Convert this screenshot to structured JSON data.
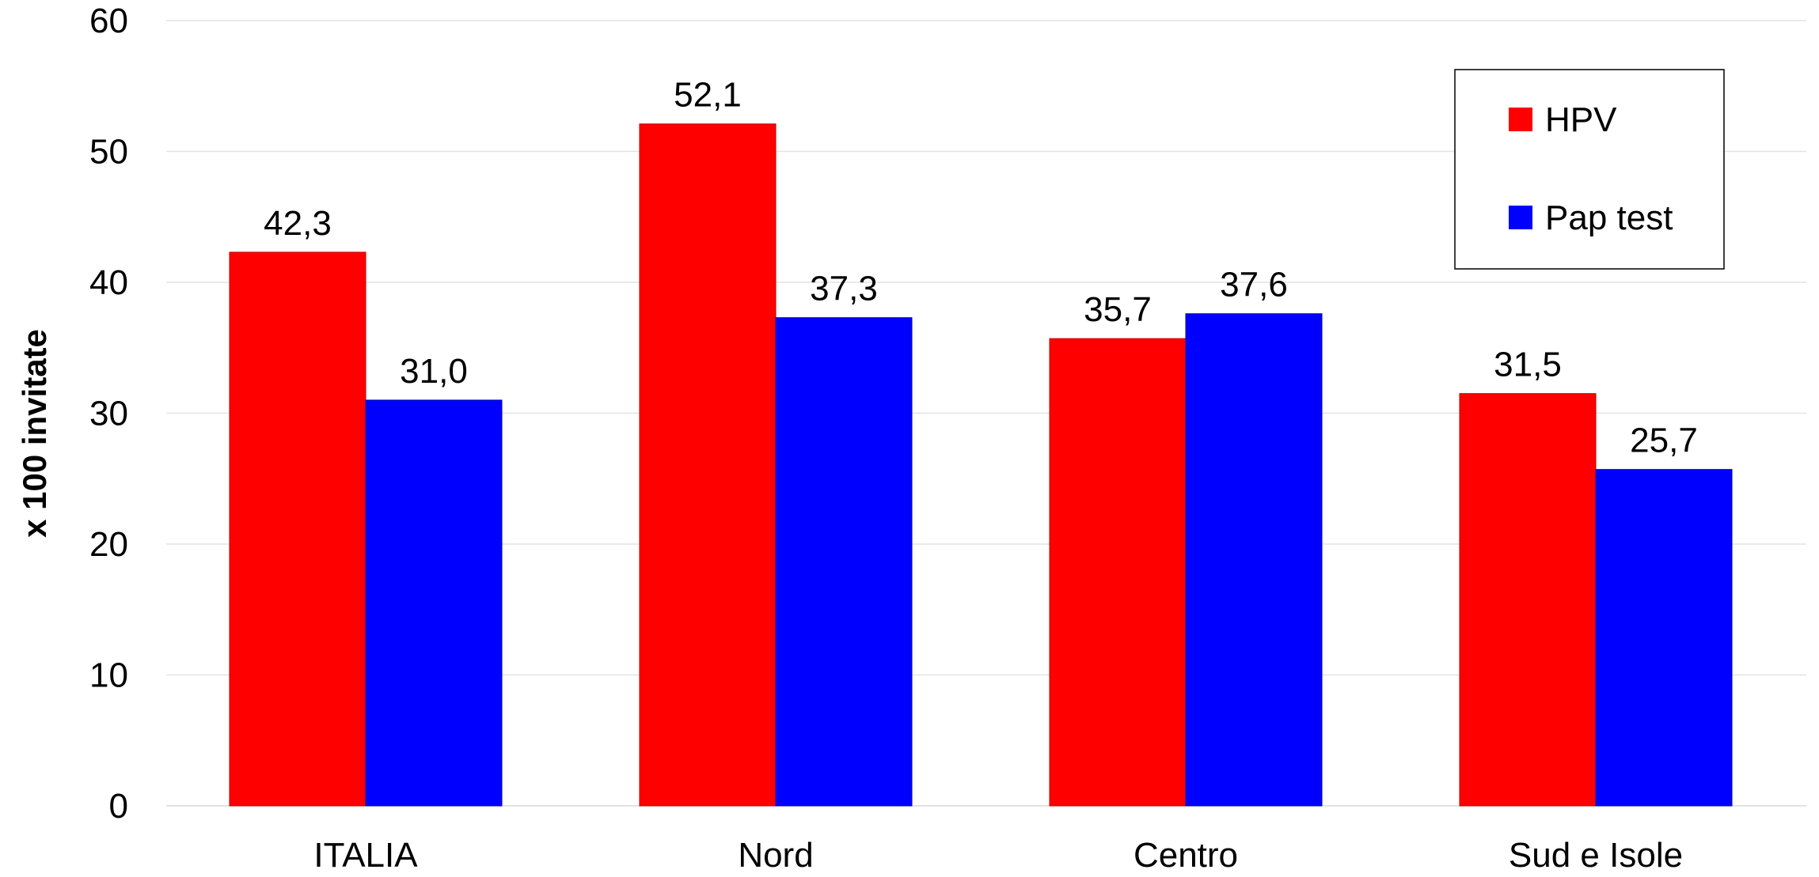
{
  "chart_data": {
    "type": "bar",
    "title": "",
    "xlabel": "",
    "ylabel": "x 100 invitate",
    "ylim": [
      0,
      60
    ],
    "yticks": [
      0,
      10,
      20,
      30,
      40,
      50,
      60
    ],
    "grid": true,
    "legend_position": "top-right",
    "categories": [
      "ITALIA",
      "Nord",
      "Centro",
      "Sud e Isole"
    ],
    "series": [
      {
        "name": "HPV",
        "color": "#ff0000",
        "values": [
          42.3,
          52.1,
          35.7,
          31.5
        ],
        "labels": [
          "42,3",
          "52,1",
          "35,7",
          "31,5"
        ]
      },
      {
        "name": "Pap test",
        "color": "#0000ff",
        "values": [
          31.0,
          37.3,
          37.6,
          25.7
        ],
        "labels": [
          "31,0",
          "37,3",
          "37,6",
          "25,7"
        ]
      }
    ]
  }
}
